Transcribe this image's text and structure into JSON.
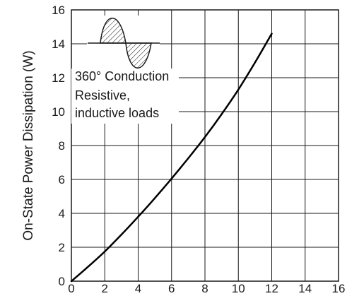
{
  "chart_data": {
    "type": "line",
    "title": "",
    "xlabel": "",
    "ylabel": "On-State Power Dissipation  (W)",
    "xlim": [
      0,
      16
    ],
    "ylim": [
      0,
      16
    ],
    "grid": true,
    "x_ticks": [
      "0",
      "2",
      "4",
      "6",
      "8",
      "10",
      "12",
      "14",
      "16"
    ],
    "y_ticks": [
      "0",
      "2",
      "4",
      "6",
      "8",
      "10",
      "12",
      "14",
      "16"
    ],
    "annotations": [
      "360° Conduction",
      "Resistive,",
      "inductive loads"
    ],
    "series": [
      {
        "name": "",
        "color": "#000000",
        "x": [
          0,
          1,
          2,
          3,
          4,
          5,
          6,
          7,
          8,
          9,
          10,
          11,
          12
        ],
        "y": [
          0,
          0.85,
          1.75,
          2.75,
          3.8,
          4.9,
          6.05,
          7.25,
          8.5,
          9.85,
          11.3,
          12.9,
          14.6
        ]
      }
    ]
  }
}
